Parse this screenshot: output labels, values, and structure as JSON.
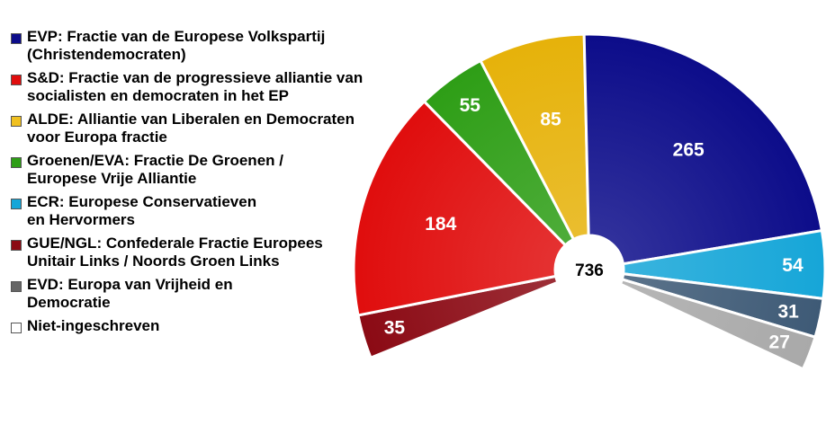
{
  "chart_data": {
    "type": "pie",
    "subtype": "half-donut parliament",
    "total": "736",
    "series": [
      {
        "name": "GUE/NGL: Confederale Fractie Europees\nUnitair Links / Noords Groen Links",
        "value": 35,
        "color": "#8b0a14"
      },
      {
        "name": "S&D: Fractie van de progressieve alliantie van\nsocialisten en democraten in het EP",
        "value": 184,
        "color": "#e00d0d"
      },
      {
        "name": "Groenen/EVA: Fractie De Groenen /\nEuropese Vrije Alliantie",
        "value": 55,
        "color": "#2e9e16"
      },
      {
        "name": "ALDE: Alliantie van Liberalen en Democraten\nvoor Europa fractie",
        "value": 85,
        "color": "#e6b20a"
      },
      {
        "name": "EVP: Fractie van de Europese Volkspartij\n(Christendemocraten)",
        "value": 265,
        "color": "#0c0c8a"
      },
      {
        "name": "ECR: Europese Conservatieven\nen Hervormers",
        "value": 54,
        "color": "#16a6d8"
      },
      {
        "name": "EVD: Europa van Vrijheid en\nDemocratie",
        "value": 31,
        "color": "#3e5a76"
      },
      {
        "name": "Niet-ingeschreven",
        "value": 27,
        "color": "#a9a9a9"
      }
    ],
    "legend_order": [
      4,
      1,
      3,
      2,
      5,
      0,
      6,
      7
    ],
    "legend_colors": [
      "#0c0c8a",
      "#e00d0d",
      "#f0c020",
      "#2e9e16",
      "#16a6d8",
      "#8b0a14",
      "#666666",
      "#ffffff"
    ],
    "legend_placement": "left"
  }
}
